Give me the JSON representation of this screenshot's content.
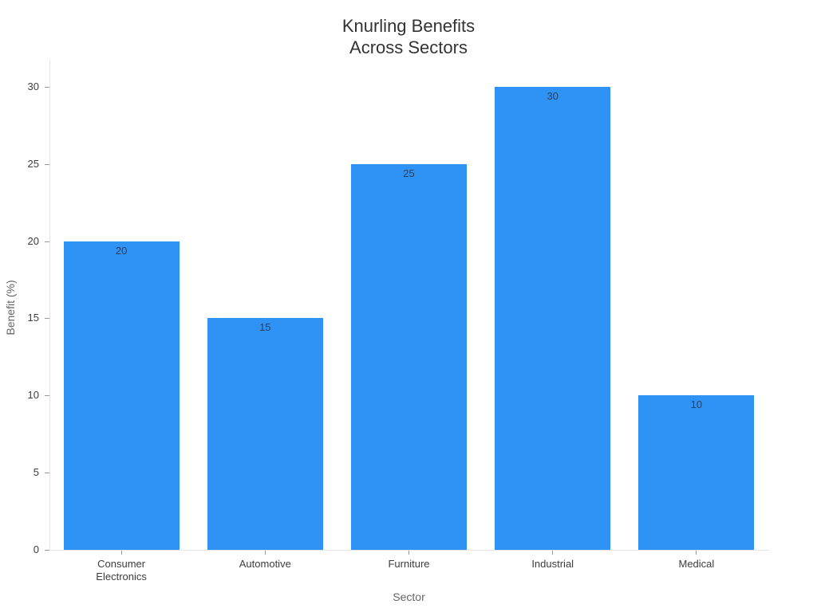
{
  "chart_data": {
    "type": "bar",
    "title": "Knurling Benefits\nAcross Sectors",
    "xlabel": "Sector",
    "ylabel": "Benefit (%)",
    "categories": [
      "Consumer\nElectronics",
      "Automotive",
      "Furniture",
      "Industrial",
      "Medical"
    ],
    "values": [
      20,
      15,
      25,
      30,
      10
    ],
    "value_labels": [
      "20",
      "15",
      "25",
      "30",
      "10"
    ],
    "yticks": [
      0,
      5,
      10,
      15,
      20,
      25,
      30
    ],
    "ylim": [
      0,
      31.75
    ],
    "grid": false,
    "legend": false
  },
  "colors": {
    "bar": "#2E93F5",
    "bar_value_label": "#2a3f5f",
    "tick_label": "#3d3d3d",
    "axis_title": "#666666",
    "chart_title": "#333333",
    "spine": "#e5e5e5",
    "tick_mark": "#999999",
    "background": "#ffffff"
  }
}
